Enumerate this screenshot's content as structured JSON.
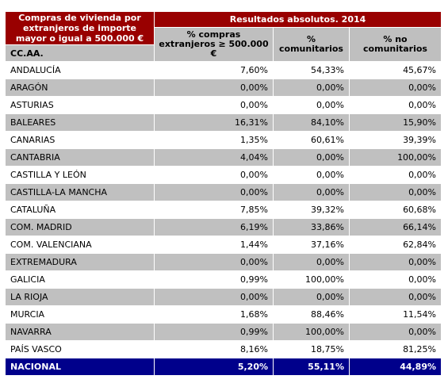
{
  "header": {
    "corner_title": "Compras de vivienda por extranjeros de importe mayor o igual a 500.000 €",
    "group_title": "Resultados absolutos. 2014",
    "row_label": "CC.AA.",
    "columns": [
      "% compras extranjeros ≥ 500.000 €",
      "% comunitarios",
      "% no comunitarios"
    ]
  },
  "rows": [
    {
      "name": "ANDALUCÍA",
      "pct_compras": "7,60%",
      "pct_com": "54,33%",
      "pct_nocom": "45,67%"
    },
    {
      "name": "ARAGÓN",
      "pct_compras": "0,00%",
      "pct_com": "0,00%",
      "pct_nocom": "0,00%"
    },
    {
      "name": "ASTURIAS",
      "pct_compras": "0,00%",
      "pct_com": "0,00%",
      "pct_nocom": "0,00%"
    },
    {
      "name": "BALEARES",
      "pct_compras": "16,31%",
      "pct_com": "84,10%",
      "pct_nocom": "15,90%"
    },
    {
      "name": "CANARIAS",
      "pct_compras": "1,35%",
      "pct_com": "60,61%",
      "pct_nocom": "39,39%"
    },
    {
      "name": "CANTABRIA",
      "pct_compras": "4,04%",
      "pct_com": "0,00%",
      "pct_nocom": "100,00%"
    },
    {
      "name": "CASTILLA Y LEÓN",
      "pct_compras": "0,00%",
      "pct_com": "0,00%",
      "pct_nocom": "0,00%"
    },
    {
      "name": "CASTILLA-LA MANCHA",
      "pct_compras": "0,00%",
      "pct_com": "0,00%",
      "pct_nocom": "0,00%"
    },
    {
      "name": "CATALUÑA",
      "pct_compras": "7,85%",
      "pct_com": "39,32%",
      "pct_nocom": "60,68%"
    },
    {
      "name": "COM. MADRID",
      "pct_compras": "6,19%",
      "pct_com": "33,86%",
      "pct_nocom": "66,14%"
    },
    {
      "name": "COM. VALENCIANA",
      "pct_compras": "1,44%",
      "pct_com": "37,16%",
      "pct_nocom": "62,84%"
    },
    {
      "name": "EXTREMADURA",
      "pct_compras": "0,00%",
      "pct_com": "0,00%",
      "pct_nocom": "0,00%"
    },
    {
      "name": "GALICIA",
      "pct_compras": "0,99%",
      "pct_com": "100,00%",
      "pct_nocom": "0,00%"
    },
    {
      "name": "LA RIOJA",
      "pct_compras": "0,00%",
      "pct_com": "0,00%",
      "pct_nocom": "0,00%"
    },
    {
      "name": "MURCIA",
      "pct_compras": "1,68%",
      "pct_com": "88,46%",
      "pct_nocom": "11,54%"
    },
    {
      "name": "NAVARRA",
      "pct_compras": "0,99%",
      "pct_com": "100,00%",
      "pct_nocom": "0,00%"
    },
    {
      "name": "PAÍS VASCO",
      "pct_compras": "8,16%",
      "pct_com": "18,75%",
      "pct_nocom": "81,25%"
    }
  ],
  "total": {
    "name": "NACIONAL",
    "pct_compras": "5,20%",
    "pct_com": "55,11%",
    "pct_nocom": "44,89%"
  },
  "colors": {
    "header_red": "#990000",
    "header_grey": "#bfbfbf",
    "stripe": "#c0c0c0",
    "total_blue": "#00008b"
  }
}
